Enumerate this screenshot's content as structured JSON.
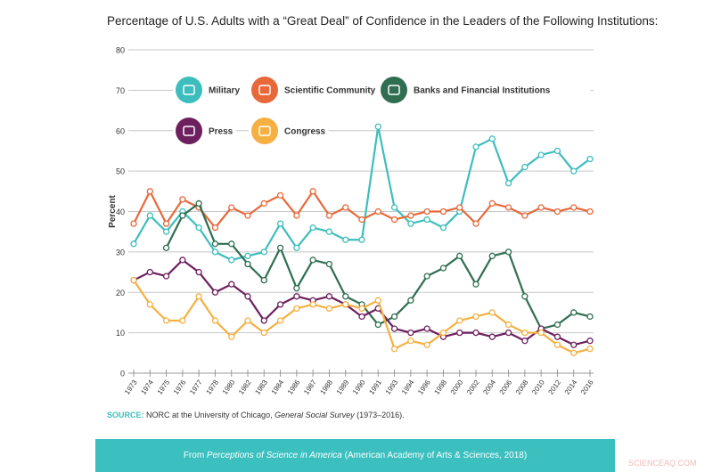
{
  "title": "Percentage of U.S. Adults with a “Great Deal” of Confidence in the Leaders of the Following Institutions:",
  "source": {
    "label": "SOURCE:",
    "text_before": " NORC at the University of Chicago, ",
    "italic": "General Social Survey",
    "text_after": " (1973–2016)."
  },
  "footer": {
    "before": "From ",
    "italic": "Perceptions of Science in America",
    "after": " (American Academy of Arts & Sciences, 2018)"
  },
  "watermark": "SCIENCEAQ.COM",
  "chart_data": {
    "type": "line",
    "title": "Percentage of U.S. Adults with a “Great Deal” of Confidence in the Leaders of the Following Institutions:",
    "xlabel": "",
    "ylabel": "Percent",
    "ylim": [
      0,
      80
    ],
    "yticks": [
      0,
      10,
      20,
      30,
      40,
      50,
      60,
      70,
      80
    ],
    "grid": true,
    "legend_placement": "top",
    "categories": [
      "1973",
      "1974",
      "1975",
      "1976",
      "1977",
      "1978",
      "1980",
      "1982",
      "1983",
      "1984",
      "1986",
      "1987",
      "1988",
      "1989",
      "1990",
      "1991",
      "1993",
      "1994",
      "1996",
      "1998",
      "2000",
      "2002",
      "2004",
      "2006",
      "2008",
      "2010",
      "2012",
      "2014",
      "2016"
    ],
    "series": [
      {
        "name": "Military",
        "color": "#3dbdbd",
        "icon": "helmet-icon",
        "values": [
          32,
          39,
          35,
          40,
          36,
          30,
          28,
          29,
          30,
          37,
          31,
          36,
          35,
          33,
          33,
          61,
          41,
          37,
          38,
          36,
          40,
          56,
          58,
          47,
          51,
          54,
          55,
          50,
          53
        ]
      },
      {
        "name": "Scientific Community",
        "color": "#e8683a",
        "icon": "flask-icon",
        "values": [
          37,
          45,
          37,
          43,
          41,
          36,
          41,
          39,
          42,
          44,
          39,
          45,
          39,
          41,
          38,
          40,
          38,
          39,
          40,
          40,
          41,
          37,
          42,
          41,
          39,
          41,
          40,
          41,
          40
        ]
      },
      {
        "name": "Banks and Financial Institutions",
        "color": "#2f6e50",
        "icon": "bank-icon",
        "values": [
          null,
          null,
          31,
          39,
          42,
          32,
          32,
          27,
          23,
          31,
          21,
          28,
          27,
          19,
          17,
          12,
          14,
          18,
          24,
          26,
          29,
          22,
          29,
          30,
          19,
          11,
          12,
          15,
          14
        ]
      },
      {
        "name": "Press",
        "color": "#6d1f5e",
        "icon": "newspaper-icon",
        "values": [
          23,
          25,
          24,
          28,
          25,
          20,
          22,
          19,
          13,
          17,
          19,
          18,
          19,
          17,
          14,
          16,
          11,
          10,
          11,
          9,
          10,
          10,
          9,
          10,
          8,
          11,
          9,
          7,
          8
        ]
      },
      {
        "name": "Congress",
        "color": "#f5b041",
        "icon": "capitol-icon",
        "values": [
          23,
          17,
          13,
          13,
          19,
          13,
          9,
          13,
          10,
          13,
          16,
          17,
          16,
          17,
          16,
          18,
          6,
          8,
          7,
          10,
          13,
          14,
          15,
          12,
          10,
          10,
          7,
          5,
          6
        ]
      }
    ]
  }
}
